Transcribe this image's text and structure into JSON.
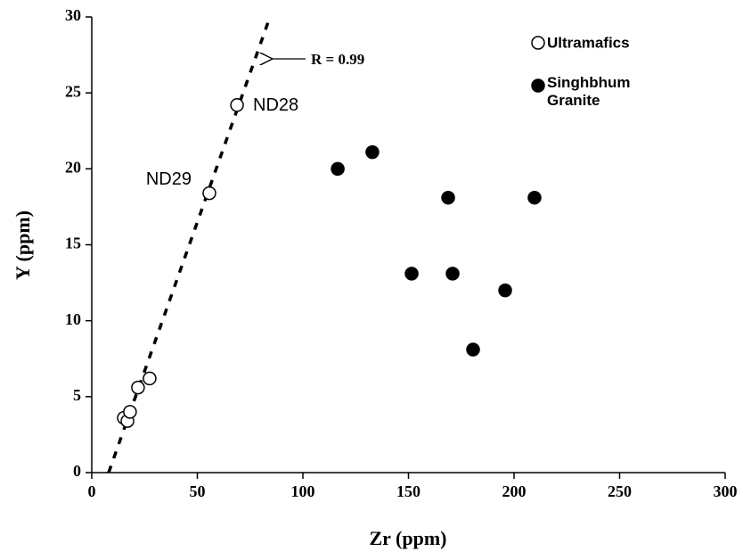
{
  "chart_data": {
    "type": "scatter",
    "xlabel": "Zr (ppm)",
    "ylabel": "Y (ppm)",
    "xlim": [
      0,
      300
    ],
    "xticks": [
      0,
      50,
      100,
      150,
      200,
      250,
      300
    ],
    "ylim": [
      0,
      30
    ],
    "yticks": [
      0,
      5,
      10,
      15,
      20,
      25,
      30
    ],
    "legend": "top-right",
    "series": [
      {
        "name": "Ultramafics",
        "color": "#000000",
        "filled": false,
        "x": [
          15.2,
          16.9,
          18.1,
          21.9,
          27.4,
          55.7,
          68.8
        ],
        "values": [
          3.6,
          3.4,
          4.0,
          5.6,
          6.2,
          18.4,
          24.2
        ],
        "labels": [
          null,
          null,
          null,
          null,
          null,
          "ND29",
          "ND28"
        ]
      },
      {
        "name": "Singhbhum Granite",
        "color": "#000000",
        "filled": true,
        "x": [
          116.5,
          132.9,
          168.8,
          209.7,
          151.5,
          170.9,
          195.8,
          180.6
        ],
        "values": [
          20.0,
          21.1,
          18.1,
          18.1,
          13.1,
          13.1,
          12.0,
          8.1
        ]
      }
    ],
    "trend_line": {
      "label": "R = 0.99",
      "x": [
        8.0,
        84.4
      ],
      "values": [
        0,
        30
      ]
    }
  }
}
